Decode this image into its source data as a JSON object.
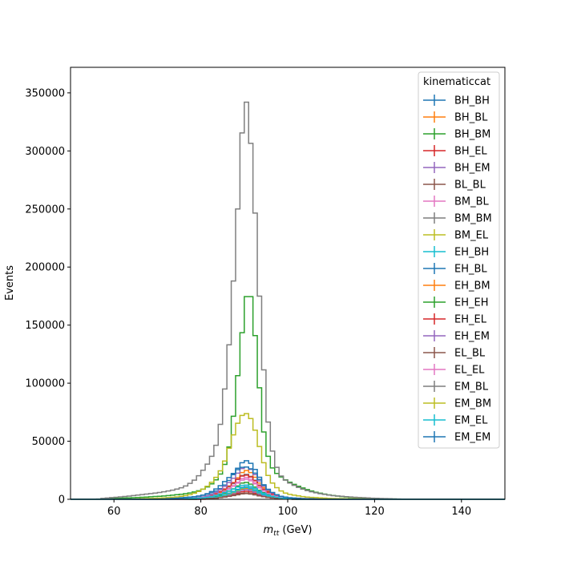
{
  "chart_data": {
    "type": "line",
    "title": "",
    "xlabel_main": "m",
    "xlabel_sub": "tt",
    "xlabel_unit": " (GeV)",
    "ylabel": "Events",
    "xlim": [
      50,
      150
    ],
    "ylim": [
      0,
      372000
    ],
    "x_ticks": [
      60,
      80,
      100,
      120,
      140
    ],
    "y_ticks": [
      0,
      50000,
      100000,
      150000,
      200000,
      250000,
      300000,
      350000
    ],
    "grid": false,
    "legend_title": "kinematiccat",
    "legend_position": "top-right",
    "bin_width": 1,
    "series": [
      {
        "name": "BH_BH",
        "color": "#1f77b4",
        "x": [
          80,
          82,
          84,
          86,
          88,
          89,
          90,
          91,
          92,
          93,
          94,
          96,
          98,
          100,
          104
        ],
        "y": [
          400,
          1200,
          2500,
          4500,
          7500,
          9500,
          11000,
          10500,
          9000,
          7000,
          5000,
          2600,
          1300,
          600,
          150
        ]
      },
      {
        "name": "BH_BL",
        "color": "#ff7f0e",
        "x": [
          80,
          82,
          84,
          86,
          88,
          89,
          90,
          91,
          92,
          93,
          94,
          96,
          98,
          100,
          104
        ],
        "y": [
          200,
          800,
          1800,
          3500,
          6000,
          8000,
          9500,
          9000,
          7500,
          5500,
          3800,
          2000,
          900,
          400,
          100
        ]
      },
      {
        "name": "BH_BM",
        "color": "#2ca02c",
        "x": [
          80,
          82,
          84,
          86,
          88,
          89,
          90,
          91,
          92,
          93,
          94,
          96,
          98,
          100,
          104
        ],
        "y": [
          500,
          1500,
          3000,
          6000,
          10000,
          13000,
          15000,
          14000,
          12000,
          9000,
          6500,
          3200,
          1500,
          700,
          200
        ]
      },
      {
        "name": "BH_EL",
        "color": "#d62728",
        "x": [
          82,
          84,
          86,
          88,
          89,
          90,
          91,
          92,
          93,
          94,
          96,
          98,
          100
        ],
        "y": [
          500,
          1200,
          2500,
          4500,
          6000,
          7000,
          6800,
          5800,
          4300,
          3000,
          1500,
          700,
          300
        ]
      },
      {
        "name": "BH_EM",
        "color": "#9467bd",
        "x": [
          82,
          84,
          86,
          88,
          89,
          90,
          91,
          92,
          93,
          94,
          96,
          98,
          100
        ],
        "y": [
          600,
          1500,
          3000,
          5500,
          7200,
          8500,
          8200,
          7000,
          5200,
          3600,
          1800,
          800,
          350
        ]
      },
      {
        "name": "BL_BL",
        "color": "#8c564b",
        "x": [
          80,
          82,
          84,
          86,
          88,
          89,
          90,
          91,
          92,
          93,
          94,
          96,
          98,
          100
        ],
        "y": [
          300,
          700,
          1300,
          2200,
          3500,
          4300,
          5000,
          4800,
          4200,
          3400,
          2500,
          1300,
          600,
          300
        ]
      },
      {
        "name": "BM_BL",
        "color": "#e377c2",
        "x": [
          80,
          82,
          84,
          86,
          88,
          89,
          90,
          91,
          92,
          93,
          94,
          96,
          98,
          100
        ],
        "y": [
          600,
          1800,
          4000,
          8000,
          13000,
          16500,
          19000,
          18500,
          16000,
          12500,
          9000,
          4500,
          2000,
          800
        ]
      },
      {
        "name": "BM_BM",
        "color": "#7f7f7f",
        "x": [
          80,
          82,
          84,
          86,
          88,
          89,
          90,
          91,
          92,
          93,
          94,
          96,
          98,
          100
        ],
        "y": [
          700,
          2000,
          4500,
          9000,
          15000,
          19000,
          22000,
          21000,
          18500,
          14500,
          10000,
          5000,
          2200,
          900
        ]
      },
      {
        "name": "BM_EL",
        "color": "#bcbd22",
        "x": [
          80,
          82,
          84,
          86,
          88,
          89,
          90,
          91,
          92,
          93,
          94,
          96,
          98,
          100
        ],
        "y": [
          300,
          900,
          2000,
          3800,
          6500,
          8500,
          10000,
          9800,
          8500,
          6500,
          4600,
          2200,
          1000,
          400
        ]
      },
      {
        "name": "EH_BH",
        "color": "#17becf",
        "x": [
          80,
          82,
          84,
          86,
          88,
          89,
          90,
          91,
          92,
          93,
          94,
          96,
          98,
          100
        ],
        "y": [
          300,
          1000,
          2200,
          4200,
          7000,
          9000,
          10500,
          10000,
          8500,
          6500,
          4600,
          2200,
          1000,
          400
        ]
      },
      {
        "name": "EH_BL",
        "color": "#1f77b4",
        "x": [
          70,
          74,
          78,
          80,
          82,
          84,
          85,
          86,
          87,
          88,
          89,
          90,
          91,
          92,
          93,
          94,
          95,
          96,
          98,
          100,
          104,
          110,
          120
        ],
        "y": [
          500,
          1000,
          2000,
          3000,
          4800,
          8000,
          10500,
          14000,
          18500,
          24000,
          29500,
          33500,
          33000,
          29000,
          22500,
          15500,
          9500,
          6000,
          3000,
          1500,
          600,
          200,
          50
        ]
      },
      {
        "name": "EH_BM",
        "color": "#ff7f0e",
        "x": [
          76,
          80,
          82,
          84,
          86,
          88,
          89,
          90,
          91,
          92,
          93,
          94,
          96,
          98,
          100,
          104
        ],
        "y": [
          300,
          1200,
          2500,
          5000,
          9500,
          16000,
          21000,
          25000,
          24500,
          21500,
          16500,
          11500,
          5500,
          2500,
          1100,
          300
        ]
      },
      {
        "name": "EH_EH",
        "color": "#2ca02c",
        "x": [
          60,
          64,
          68,
          72,
          76,
          78,
          80,
          82,
          84,
          85,
          86,
          87,
          88,
          89,
          90,
          91,
          92,
          93,
          94,
          95,
          96,
          97,
          98,
          99,
          100,
          102,
          104,
          106,
          108,
          110,
          112,
          115,
          120,
          125
        ],
        "y": [
          800,
          1300,
          2000,
          3000,
          4500,
          5800,
          7800,
          11500,
          18500,
          25000,
          35000,
          55000,
          88000,
          125000,
          162000,
          187000,
          162000,
          120000,
          72000,
          44000,
          30000,
          24000,
          20500,
          18000,
          15500,
          12000,
          9000,
          6500,
          4800,
          3500,
          2500,
          1500,
          700,
          200
        ]
      },
      {
        "name": "EH_EL",
        "color": "#d62728",
        "x": [
          76,
          80,
          82,
          84,
          86,
          88,
          89,
          90,
          91,
          92,
          93,
          94,
          96,
          98,
          100,
          104
        ],
        "y": [
          300,
          1300,
          2800,
          5500,
          10000,
          15500,
          19000,
          21000,
          20500,
          18000,
          14000,
          10000,
          5000,
          2200,
          1000,
          300
        ]
      },
      {
        "name": "EH_EM",
        "color": "#9467bd",
        "x": [
          76,
          80,
          82,
          84,
          86,
          88,
          89,
          90,
          91,
          92,
          93,
          94,
          96,
          98,
          100,
          104
        ],
        "y": [
          400,
          1600,
          3400,
          6800,
          12500,
          20000,
          25000,
          28000,
          27500,
          24000,
          18500,
          13000,
          6200,
          2700,
          1200,
          350
        ]
      },
      {
        "name": "EL_BL",
        "color": "#8c564b",
        "x": [
          80,
          82,
          84,
          86,
          88,
          89,
          90,
          91,
          92,
          93,
          94,
          96,
          98,
          100
        ],
        "y": [
          200,
          600,
          1200,
          2200,
          3800,
          4800,
          5500,
          5300,
          4600,
          3600,
          2600,
          1300,
          600,
          250
        ]
      },
      {
        "name": "EL_EL",
        "color": "#e377c2",
        "x": [
          78,
          80,
          82,
          84,
          86,
          88,
          89,
          90,
          91,
          92,
          93,
          94,
          96,
          98,
          100,
          104
        ],
        "y": [
          400,
          1000,
          2200,
          4200,
          7500,
          12500,
          15500,
          17500,
          17000,
          15000,
          11500,
          8000,
          4000,
          1800,
          800,
          200
        ]
      },
      {
        "name": "EM_BL",
        "color": "#7f7f7f",
        "x": [
          58,
          60,
          62,
          64,
          66,
          68,
          70,
          72,
          74,
          76,
          77,
          78,
          79,
          80,
          81,
          82,
          83,
          84,
          85,
          86,
          87,
          88,
          89,
          90,
          91,
          92,
          93,
          94,
          95,
          96,
          97,
          98,
          99,
          100,
          102,
          104,
          106,
          108,
          110,
          115,
          120,
          125
        ],
        "y": [
          1000,
          1600,
          2200,
          3000,
          3800,
          4700,
          5600,
          6800,
          8200,
          10500,
          12500,
          15000,
          18000,
          22500,
          27500,
          33000,
          41000,
          52000,
          77000,
          113000,
          153000,
          223000,
          277000,
          354000,
          330000,
          283000,
          210000,
          140000,
          83000,
          50000,
          33000,
          22000,
          18000,
          15000,
          11000,
          8000,
          6000,
          4500,
          3300,
          1800,
          900,
          300
        ]
      },
      {
        "name": "EM_BM",
        "color": "#bcbd22",
        "x": [
          66,
          70,
          74,
          76,
          78,
          80,
          82,
          84,
          85,
          86,
          87,
          88,
          89,
          90,
          91,
          92,
          93,
          94,
          95,
          96,
          98,
          100,
          104,
          110,
          120
        ],
        "y": [
          500,
          900,
          1800,
          2800,
          4500,
          7500,
          12500,
          21000,
          28000,
          38000,
          50000,
          61000,
          70000,
          74500,
          73000,
          66000,
          53000,
          38000,
          25000,
          16000,
          8000,
          4500,
          2000,
          700,
          150
        ]
      },
      {
        "name": "EM_EL",
        "color": "#17becf",
        "x": [
          76,
          80,
          82,
          84,
          86,
          88,
          89,
          90,
          91,
          92,
          93,
          94,
          96,
          98,
          100
        ],
        "y": [
          300,
          1000,
          2000,
          3800,
          6500,
          9500,
          11500,
          12500,
          12000,
          10500,
          8200,
          5900,
          2900,
          1300,
          600
        ]
      },
      {
        "name": "EM_EM",
        "color": "#1f77b4",
        "x": [
          72,
          76,
          80,
          82,
          84,
          86,
          88,
          89,
          90,
          91,
          92,
          93,
          94,
          96,
          98,
          100,
          104
        ],
        "y": [
          400,
          1100,
          3000,
          5500,
          10000,
          17000,
          24000,
          27000,
          28000,
          27500,
          25000,
          20000,
          14000,
          6800,
          3000,
          1300,
          350
        ]
      }
    ]
  }
}
